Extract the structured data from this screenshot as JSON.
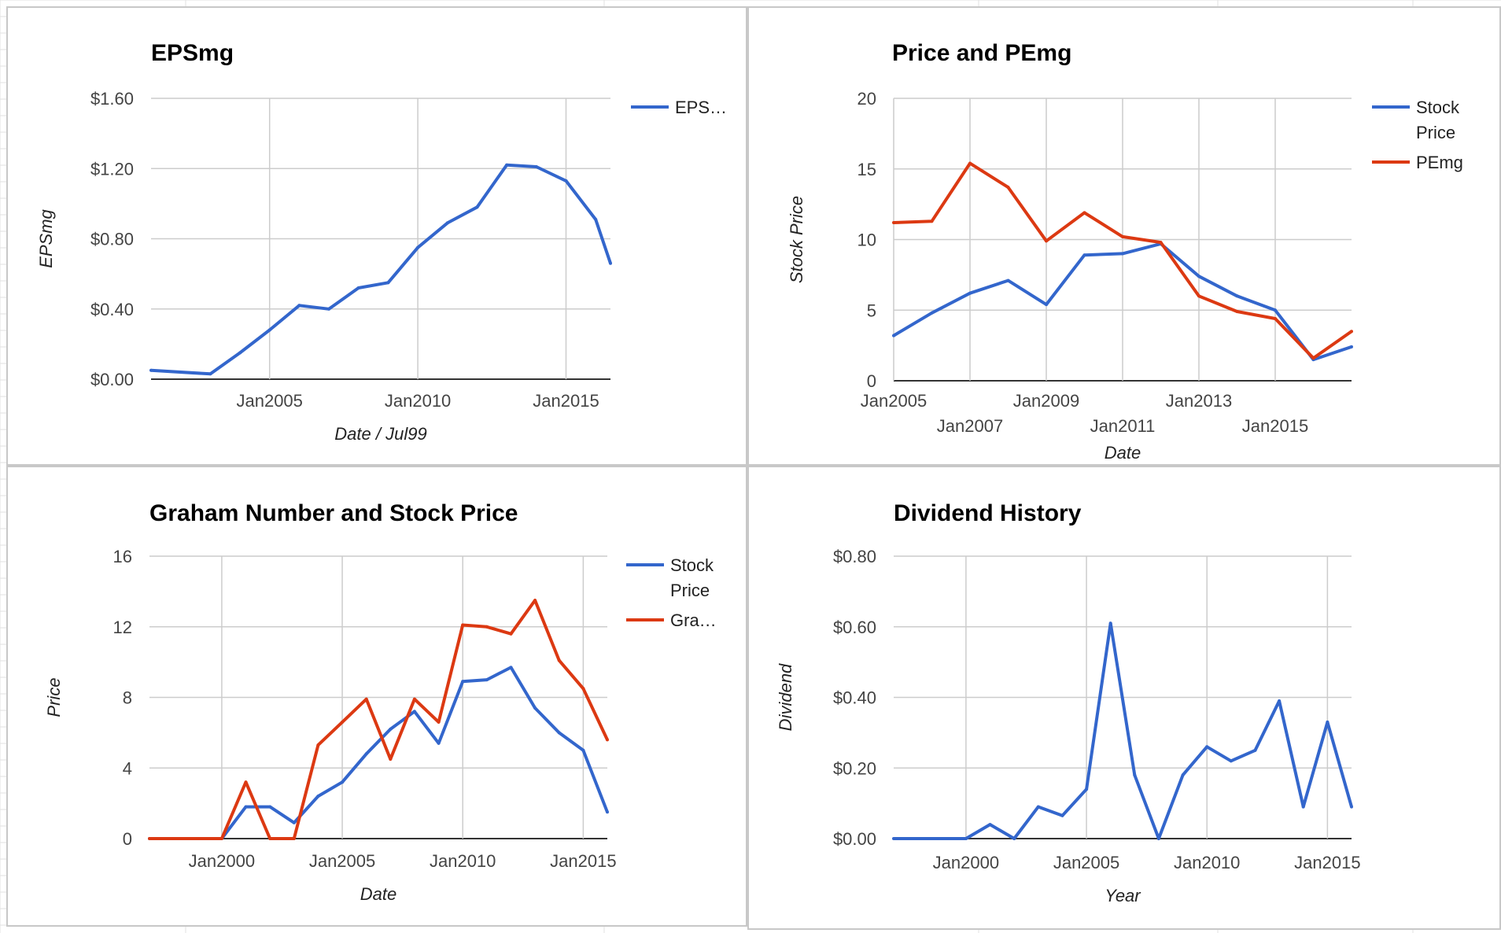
{
  "colors": {
    "series_blue": "#3366cc",
    "series_red": "#dc3912",
    "grid": "#cccccc",
    "baseline": "#333333",
    "panel_border": "#c8c8c8",
    "sheet_grid": "#e2e2e2"
  },
  "chart_data": [
    {
      "id": "epsmg",
      "type": "line",
      "title": "EPSmg",
      "xlabel": "Date / Jul99",
      "ylabel": "EPSmg",
      "grid": true,
      "legend": "right",
      "xlim": [
        2001.0,
        2016.5
      ],
      "ylim": [
        0,
        1.6
      ],
      "yticks": [
        0,
        0.4,
        0.8,
        1.2,
        1.6
      ],
      "ytick_labels": [
        "$0.00",
        "$0.40",
        "$0.80",
        "$1.20",
        "$1.60"
      ],
      "xticks": [
        {
          "value": 2005,
          "label": "Jan2005",
          "row": 0
        },
        {
          "value": 2010,
          "label": "Jan2010",
          "row": 0
        },
        {
          "value": 2015,
          "label": "Jan2015",
          "row": 0
        }
      ],
      "series": [
        {
          "name": "EPS…",
          "color": "#3366cc",
          "x": [
            2001.0,
            2003.0,
            2004.0,
            2005.0,
            2006.0,
            2007.0,
            2008.0,
            2009.0,
            2010.0,
            2011.0,
            2012.0,
            2013.0,
            2014.0,
            2015.0,
            2016.0,
            2016.5
          ],
          "values": [
            0.05,
            0.03,
            0.15,
            0.28,
            0.42,
            0.4,
            0.52,
            0.55,
            0.75,
            0.89,
            0.98,
            1.22,
            1.21,
            1.13,
            0.91,
            0.66
          ]
        }
      ]
    },
    {
      "id": "price-pemg",
      "type": "line",
      "title": "Price and PEmg",
      "xlabel": "Date",
      "ylabel": "Stock Price",
      "grid": true,
      "legend": "right",
      "xlim": [
        2005.0,
        2017.0
      ],
      "ylim": [
        0,
        20
      ],
      "yticks": [
        0,
        5,
        10,
        15,
        20
      ],
      "ytick_labels": [
        "0",
        "5",
        "10",
        "15",
        "20"
      ],
      "xticks": [
        {
          "value": 2005,
          "label": "Jan2005",
          "row": 0
        },
        {
          "value": 2007,
          "label": "Jan2007",
          "row": 1
        },
        {
          "value": 2009,
          "label": "Jan2009",
          "row": 0
        },
        {
          "value": 2011,
          "label": "Jan2011",
          "row": 1
        },
        {
          "value": 2013,
          "label": "Jan2013",
          "row": 0
        },
        {
          "value": 2015,
          "label": "Jan2015",
          "row": 1
        }
      ],
      "series": [
        {
          "name": "Stock Price",
          "color": "#3366cc",
          "x": [
            2005.0,
            2006.0,
            2007.0,
            2008.0,
            2009.0,
            2010.0,
            2011.0,
            2012.0,
            2013.0,
            2014.0,
            2015.0,
            2016.0,
            2017.0
          ],
          "values": [
            3.2,
            4.8,
            6.2,
            7.1,
            5.4,
            8.9,
            9.0,
            9.7,
            7.4,
            6.0,
            5.0,
            1.5,
            2.4
          ]
        },
        {
          "name": "PEmg",
          "color": "#dc3912",
          "x": [
            2005.0,
            2006.0,
            2007.0,
            2008.0,
            2009.0,
            2010.0,
            2011.0,
            2012.0,
            2013.0,
            2014.0,
            2015.0,
            2016.0,
            2017.0
          ],
          "values": [
            11.2,
            11.3,
            15.4,
            13.7,
            9.9,
            11.9,
            10.2,
            9.8,
            6.0,
            4.9,
            4.4,
            1.6,
            3.5
          ]
        }
      ]
    },
    {
      "id": "graham",
      "type": "line",
      "title": "Graham Number and Stock Price",
      "xlabel": "Date",
      "ylabel": "Price",
      "grid": true,
      "legend": "right",
      "xlim": [
        1997.0,
        2016.0
      ],
      "ylim": [
        0,
        16
      ],
      "yticks": [
        0,
        4,
        8,
        12,
        16
      ],
      "ytick_labels": [
        "0",
        "4",
        "8",
        "12",
        "16"
      ],
      "xticks": [
        {
          "value": 2000,
          "label": "Jan2000",
          "row": 0
        },
        {
          "value": 2005,
          "label": "Jan2005",
          "row": 0
        },
        {
          "value": 2010,
          "label": "Jan2010",
          "row": 0
        },
        {
          "value": 2015,
          "label": "Jan2015",
          "row": 0
        }
      ],
      "series": [
        {
          "name": "Stock Price",
          "color": "#3366cc",
          "x": [
            1997,
            1998,
            1999,
            2000,
            2001,
            2002,
            2003,
            2004,
            2005,
            2006,
            2007,
            2008,
            2009,
            2010,
            2011,
            2012,
            2013,
            2014,
            2015,
            2016
          ],
          "values": [
            0,
            0,
            0,
            0,
            1.8,
            1.8,
            0.9,
            2.4,
            3.2,
            4.8,
            6.2,
            7.2,
            5.4,
            8.9,
            9.0,
            9.7,
            7.4,
            6.0,
            5.0,
            1.5
          ]
        },
        {
          "name": "Gra…",
          "color": "#dc3912",
          "x": [
            1997,
            1998,
            1999,
            2000,
            2001,
            2002,
            2003,
            2004,
            2005,
            2006,
            2007,
            2008,
            2009,
            2010,
            2011,
            2012,
            2013,
            2014,
            2015,
            2016
          ],
          "values": [
            0,
            0,
            0,
            0,
            3.2,
            0,
            0,
            5.3,
            6.6,
            7.9,
            4.5,
            7.9,
            6.6,
            12.1,
            12.0,
            11.6,
            13.5,
            10.1,
            8.5,
            5.6
          ]
        }
      ]
    },
    {
      "id": "dividend",
      "type": "line",
      "title": "Dividend History",
      "xlabel": "Year",
      "ylabel": "Dividend",
      "grid": true,
      "legend": "none",
      "xlim": [
        1997.0,
        2016.0
      ],
      "ylim": [
        0,
        0.8
      ],
      "yticks": [
        0,
        0.2,
        0.4,
        0.6,
        0.8
      ],
      "ytick_labels": [
        "$0.00",
        "$0.20",
        "$0.40",
        "$0.60",
        "$0.80"
      ],
      "xticks": [
        {
          "value": 2000,
          "label": "Jan2000",
          "row": 0
        },
        {
          "value": 2005,
          "label": "Jan2005",
          "row": 0
        },
        {
          "value": 2010,
          "label": "Jan2010",
          "row": 0
        },
        {
          "value": 2015,
          "label": "Jan2015",
          "row": 0
        }
      ],
      "series": [
        {
          "name": "",
          "color": "#3366cc",
          "x": [
            1997,
            1998,
            1999,
            2000,
            2001,
            2002,
            2003,
            2004,
            2005,
            2006,
            2007,
            2008,
            2009,
            2010,
            2011,
            2012,
            2013,
            2014,
            2015,
            2016
          ],
          "values": [
            0,
            0,
            0,
            0,
            0.04,
            0,
            0.09,
            0.065,
            0.14,
            0.61,
            0.18,
            0,
            0.18,
            0.26,
            0.22,
            0.25,
            0.39,
            0.09,
            0.33,
            0.09
          ]
        }
      ]
    }
  ]
}
